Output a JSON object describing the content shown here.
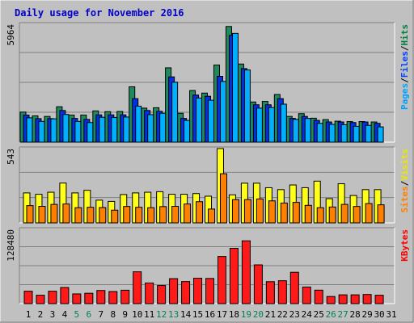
{
  "chart_data": [
    {
      "type": "bar",
      "title": "Daily usage for November 2016",
      "categories": [
        "1",
        "2",
        "3",
        "4",
        "5",
        "6",
        "7",
        "8",
        "9",
        "10",
        "11",
        "12",
        "13",
        "14",
        "15",
        "16",
        "17",
        "18",
        "19",
        "20",
        "21",
        "22",
        "23",
        "24",
        "25",
        "26",
        "27",
        "28",
        "29",
        "30",
        "31"
      ],
      "weekend_days": [
        "5",
        "6",
        "12",
        "13",
        "19",
        "20",
        "26",
        "27"
      ],
      "ymax_label": "5964",
      "ylim": [
        0,
        5964
      ],
      "axis_legend": [
        {
          "text": "Pages",
          "color": "#00a0ff"
        },
        {
          "text": "/",
          "color": "#000000"
        },
        {
          "text": "Files",
          "color": "#0040ff"
        },
        {
          "text": "/",
          "color": "#000000"
        },
        {
          "text": "Hits",
          "color": "#008040"
        }
      ],
      "series": [
        {
          "name": "Hits",
          "color": "#1f8a5e",
          "values": [
            1520,
            1330,
            1300,
            1790,
            1370,
            1370,
            1580,
            1540,
            1550,
            2800,
            1720,
            1740,
            3760,
            1460,
            2610,
            2480,
            3900,
            5850,
            3950,
            2030,
            2060,
            2410,
            1300,
            1440,
            1210,
            1140,
            1060,
            1040,
            1040,
            1020,
            0
          ]
        },
        {
          "name": "Files",
          "color": "#0030e8",
          "values": [
            1370,
            1190,
            1190,
            1600,
            1200,
            1150,
            1380,
            1380,
            1380,
            2200,
            1600,
            1560,
            3300,
            1200,
            2380,
            2320,
            3330,
            5400,
            3720,
            1890,
            1890,
            2200,
            1200,
            1300,
            1100,
            1020,
            1020,
            990,
            1020,
            950,
            0
          ]
        },
        {
          "name": "Pages",
          "color": "#00b0ff",
          "values": [
            1230,
            1050,
            1180,
            1400,
            1050,
            990,
            1260,
            1250,
            1270,
            1820,
            1390,
            1460,
            3030,
            1100,
            2230,
            2120,
            3070,
            5500,
            3650,
            1720,
            1750,
            1920,
            1150,
            1200,
            950,
            900,
            880,
            800,
            850,
            770,
            0
          ]
        }
      ]
    },
    {
      "type": "bar",
      "ymax_label": "543",
      "ylim": [
        0,
        543
      ],
      "axis_legend": [
        {
          "text": "Sites",
          "color": "#ff8000"
        },
        {
          "text": "/",
          "color": "#000000"
        },
        {
          "text": "Visits",
          "color": "#e8e800"
        }
      ],
      "series": [
        {
          "name": "Visits",
          "color": "#ffff1a",
          "values": [
            219,
            209,
            224,
            291,
            219,
            238,
            166,
            157,
            207,
            219,
            224,
            228,
            209,
            209,
            214,
            195,
            543,
            205,
            290,
            290,
            257,
            243,
            277,
            257,
            305,
            177,
            286,
            200,
            243,
            243,
            0
          ]
        },
        {
          "name": "Sites",
          "color": "#ff8000",
          "values": [
            126,
            121,
            135,
            138,
            111,
            114,
            112,
            93,
            120,
            114,
            111,
            119,
            121,
            138,
            155,
            101,
            359,
            170,
            170,
            175,
            161,
            145,
            150,
            128,
            111,
            116,
            135,
            120,
            141,
            132,
            0
          ]
        }
      ]
    },
    {
      "type": "bar",
      "ymax_label": "128480",
      "ylim": [
        0,
        128480
      ],
      "axis_legend": [
        {
          "text": "KBytes",
          "color": "#ff0000"
        }
      ],
      "series": [
        {
          "name": "KBytes",
          "color": "#ff1a1a",
          "values": [
            21500,
            14600,
            21500,
            27900,
            16800,
            17900,
            22700,
            20900,
            23200,
            55100,
            35700,
            31300,
            43200,
            38200,
            44000,
            43500,
            81500,
            95600,
            108600,
            67000,
            38000,
            39600,
            54200,
            28700,
            23300,
            12300,
            15200,
            15200,
            15800,
            14500,
            0
          ]
        }
      ]
    }
  ]
}
